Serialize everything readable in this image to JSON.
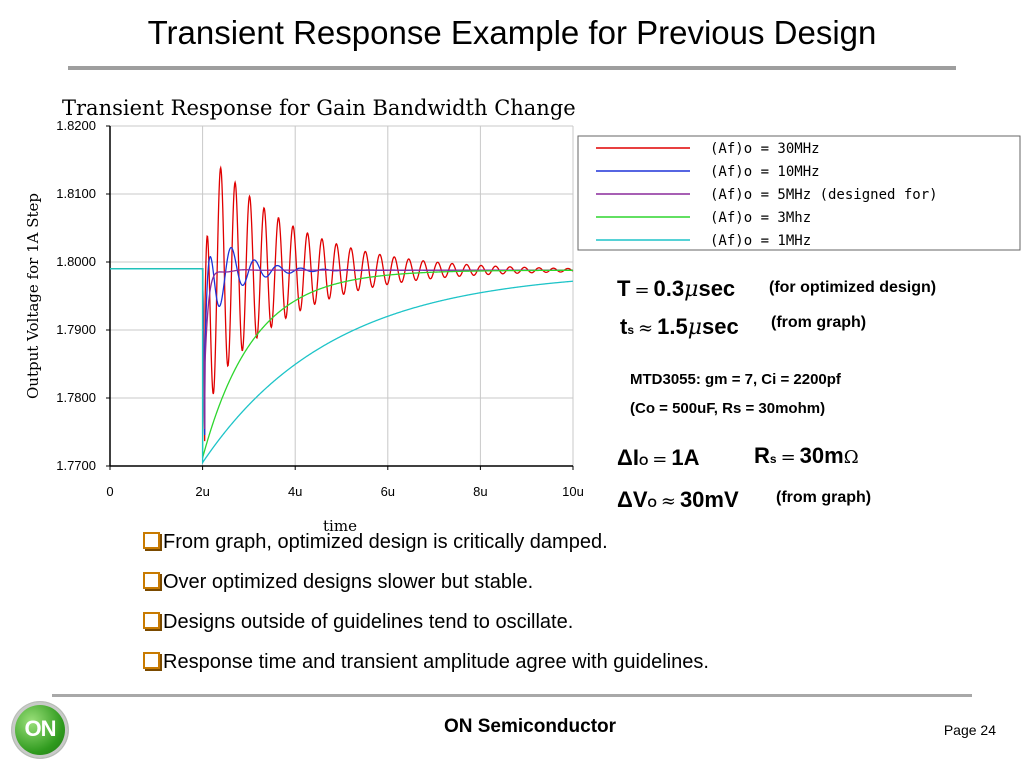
{
  "slide": {
    "title": "Transient Response Example for Previous Design",
    "company": "ON Semiconductor",
    "page_label": "Page 24",
    "logo_text": "ON"
  },
  "chart_data": {
    "type": "line",
    "title": "Transient Response for Gain Bandwidth Change",
    "xlabel": "time",
    "ylabel": "Output Voltage for 1A Step",
    "xlim": [
      0,
      10
    ],
    "ylim": [
      1.77,
      1.82
    ],
    "x_ticks": [
      "0",
      "2u",
      "4u",
      "6u",
      "8u",
      "10u"
    ],
    "y_ticks": [
      "1.8200",
      "1.8100",
      "1.8000",
      "1.7900",
      "1.7800",
      "1.7700"
    ],
    "grid": true,
    "legend_position": "top-right",
    "step_time": 2,
    "initial_value": 1.799,
    "series": [
      {
        "name": "(Af)o = 30MHz",
        "color": "#e00000",
        "final": 1.7988,
        "dip": 1.7705,
        "overshoot": 0.019,
        "freq": 3.2,
        "decay": 0.55,
        "tau": 0
      },
      {
        "name": "(Af)o = 10MHz",
        "color": "#1e32d8",
        "final": 1.7988,
        "dip": 1.7715,
        "overshoot": 0.009,
        "freq": 2.0,
        "decay": 1.6,
        "tau": 0
      },
      {
        "name": "(Af)o = 5MHz (designed for)",
        "color": "#8a2a9c",
        "final": 1.7988,
        "dip": 1.7725,
        "overshoot": 0.0015,
        "freq": 1.3,
        "decay": 3.5,
        "tau": 0
      },
      {
        "name": "(Af)o = 3Mhz",
        "color": "#2ed62e",
        "final": 1.7988,
        "dip": 1.7712,
        "overshoot": 0,
        "freq": 0,
        "decay": 0,
        "tau": 1.1
      },
      {
        "name": "(Af)o = 1MHz",
        "color": "#1ec4c8",
        "final": 1.7988,
        "dip": 1.7705,
        "overshoot": 0,
        "freq": 0,
        "decay": 0,
        "tau": 2.8
      }
    ]
  },
  "results": {
    "T": {
      "symbol": "T",
      "op": "=",
      "value": "0.3",
      "mu": "μ",
      "unit": "sec",
      "note": "(for optimized design)"
    },
    "ts": {
      "symbol": "t",
      "sub": "s",
      "op": "≈",
      "value": "1.5",
      "mu": "μ",
      "unit": "sec",
      "note": "(from graph)"
    },
    "mtd_line1": "MTD3055: gm = 7, Ci = 2200pf",
    "mtd_line2": "(Co = 500uF, Rs = 30mohm)",
    "dIo": {
      "symbol": "ΔI",
      "sub": "O",
      "op": "=",
      "value": "1A"
    },
    "Rs": {
      "symbol": "R",
      "sub": "s",
      "op": "=",
      "value": "30m",
      "omega": "Ω"
    },
    "dVo": {
      "symbol": "ΔV",
      "sub": "O",
      "op": "≈",
      "value": "30mV",
      "note": "(from graph)"
    }
  },
  "bullets": [
    "From graph, optimized design is critically damped.",
    "Over optimized designs slower but stable.",
    "Designs outside of guidelines tend to oscillate.",
    "Response time and transient amplitude agree with guidelines."
  ]
}
